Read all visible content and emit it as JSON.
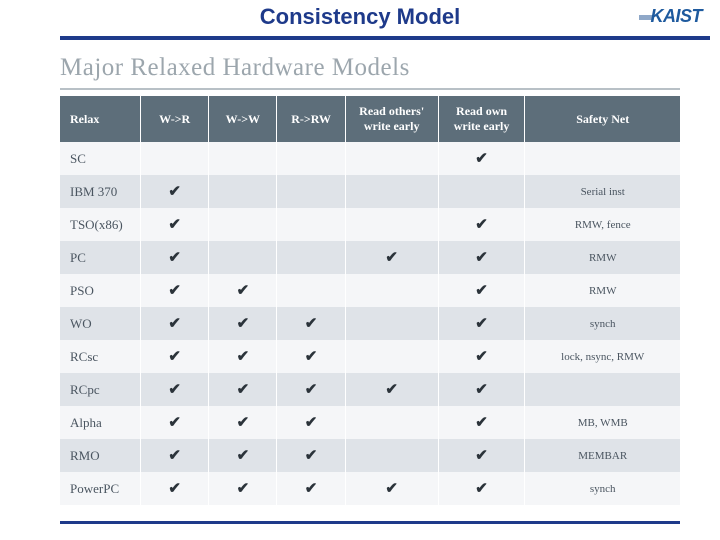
{
  "header": {
    "title": "Consistency Model",
    "logo_text": "KAIST"
  },
  "section": {
    "title": "Major Relaxed Hardware Models"
  },
  "table": {
    "type": "table",
    "header_bg": "#5d6e7a",
    "header_fg": "#ffffff",
    "row_light_bg": "#f5f6f8",
    "row_dark_bg": "#dfe3e8",
    "check_glyph": "✔",
    "columns": [
      "Relax",
      "W->R",
      "W->W",
      "R->RW",
      "Read others' write early",
      "Read own write early",
      "Safety Net"
    ],
    "rows": [
      {
        "model": "SC",
        "wr": false,
        "ww": false,
        "rrw": false,
        "roth": false,
        "rown": true,
        "safety": ""
      },
      {
        "model": "IBM 370",
        "wr": true,
        "ww": false,
        "rrw": false,
        "roth": false,
        "rown": false,
        "safety": "Serial inst"
      },
      {
        "model": "TSO(x86)",
        "wr": true,
        "ww": false,
        "rrw": false,
        "roth": false,
        "rown": true,
        "safety": "RMW, fence"
      },
      {
        "model": "PC",
        "wr": true,
        "ww": false,
        "rrw": false,
        "roth": true,
        "rown": true,
        "safety": "RMW"
      },
      {
        "model": "PSO",
        "wr": true,
        "ww": true,
        "rrw": false,
        "roth": false,
        "rown": true,
        "safety": "RMW"
      },
      {
        "model": "WO",
        "wr": true,
        "ww": true,
        "rrw": true,
        "roth": false,
        "rown": true,
        "safety": "synch"
      },
      {
        "model": "RCsc",
        "wr": true,
        "ww": true,
        "rrw": true,
        "roth": false,
        "rown": true,
        "safety": "lock, nsync, RMW"
      },
      {
        "model": "RCpc",
        "wr": true,
        "ww": true,
        "rrw": true,
        "roth": true,
        "rown": true,
        "safety": ""
      },
      {
        "model": "Alpha",
        "wr": true,
        "ww": true,
        "rrw": true,
        "roth": false,
        "rown": true,
        "safety": "MB, WMB"
      },
      {
        "model": "RMO",
        "wr": true,
        "ww": true,
        "rrw": true,
        "roth": false,
        "rown": true,
        "safety": "MEMBAR"
      },
      {
        "model": "PowerPC",
        "wr": true,
        "ww": true,
        "rrw": true,
        "roth": true,
        "rown": true,
        "safety": "synch"
      }
    ]
  },
  "colors": {
    "title_color": "#1e3a8a",
    "underline_color": "#1e3a8a",
    "section_title_color": "#9ca6ad"
  }
}
